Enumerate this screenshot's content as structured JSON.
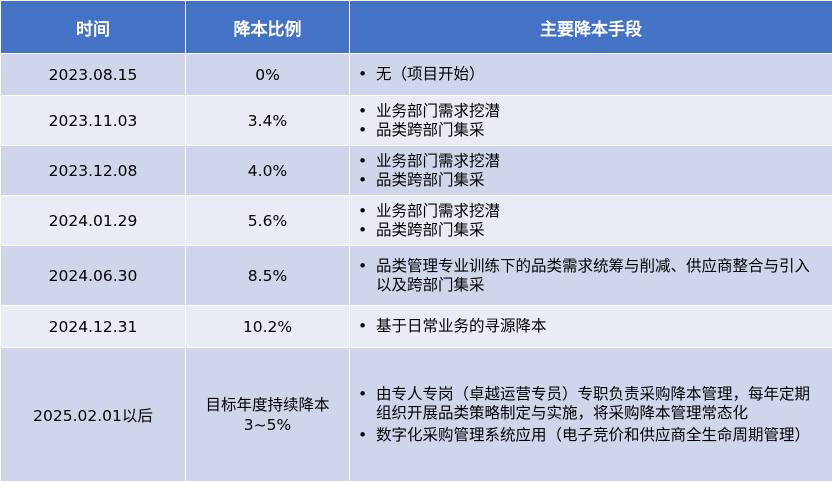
{
  "header": {
    "col_time": "时间",
    "col_ratio": "降本比例",
    "col_means": "主要降本手段"
  },
  "rows": [
    {
      "time": "2023.08.15",
      "ratio": "0%",
      "means": [
        "无（项目开始）"
      ]
    },
    {
      "time": "2023.11.03",
      "ratio": "3.4%",
      "means": [
        "业务部门需求挖潜",
        "品类跨部门集采"
      ]
    },
    {
      "time": "2023.12.08",
      "ratio": "4.0%",
      "means": [
        "业务部门需求挖潜",
        "品类跨部门集采"
      ]
    },
    {
      "time": "2024.01.29",
      "ratio": "5.6%",
      "means": [
        "业务部门需求挖潜",
        "品类跨部门集采"
      ]
    },
    {
      "time": "2024.06.30",
      "ratio": "8.5%",
      "means": [
        "品类管理专业训练下的品类需求统筹与削减、供应商整合与引入以及跨部门集采"
      ]
    },
    {
      "time": "2024.12.31",
      "ratio": "10.2%",
      "means": [
        "基于日常业务的寻源降本"
      ]
    },
    {
      "time": "2025.02.01以后",
      "ratio_line1": "目标年度持续降本",
      "ratio_line2": "3~5%",
      "means": [
        "由专人专岗（卓越运营专员）专职负责采购降本管理，每年定期组织开展品类策略制定与实施，将采购降本管理常态化",
        "数字化采购管理系统应用（电子竞价和供应商全生命周期管理）"
      ]
    }
  ]
}
